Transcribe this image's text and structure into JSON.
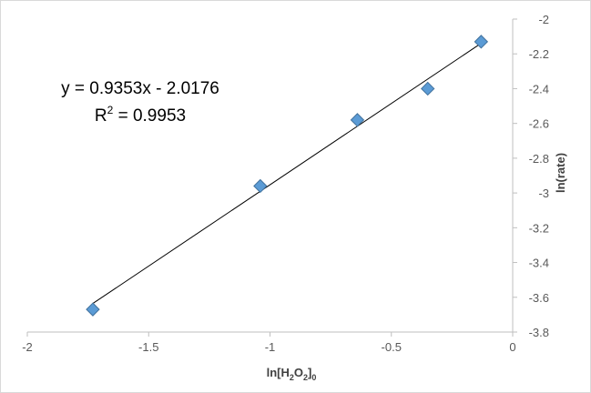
{
  "chart_data": {
    "type": "scatter",
    "title": "",
    "xlabel_parts": [
      "ln[H",
      "2",
      "O",
      "2",
      "]",
      "0"
    ],
    "ylabel": "ln(rate)",
    "xlim": [
      -2,
      0
    ],
    "ylim": [
      -3.8,
      -2
    ],
    "x_ticks": [
      -2,
      -1.5,
      -1,
      -0.5,
      0
    ],
    "y_ticks": [
      -3.8,
      -3.6,
      -3.4,
      -3.2,
      -3,
      -2.8,
      -2.6,
      -2.4,
      -2.2,
      -2
    ],
    "x_tick_labels": [
      "-2",
      "-1.5",
      "-1",
      "-0.5",
      "0"
    ],
    "y_tick_labels": [
      "-3.8",
      "-3.6",
      "-3.4",
      "-3.2",
      "-3",
      "-2.8",
      "-2.6",
      "-2.4",
      "-2.2",
      "-2"
    ],
    "grid": false,
    "y_axis_position": "right",
    "points": [
      {
        "x": -1.73,
        "y": -3.67
      },
      {
        "x": -1.04,
        "y": -2.96
      },
      {
        "x": -0.64,
        "y": -2.58
      },
      {
        "x": -0.35,
        "y": -2.4
      },
      {
        "x": -0.13,
        "y": -2.13
      }
    ],
    "trendline": {
      "slope": 0.9353,
      "intercept": -2.0176,
      "x_range": [
        -1.73,
        -0.13
      ],
      "equation_label": "y = 0.9353x - 2.0176",
      "r2_label_prefix": "R",
      "r2_label_sup": "2",
      "r2_label_value": " = 0.9953"
    },
    "colors": {
      "marker_fill": "#5b9bd5",
      "marker_stroke": "#41719c",
      "trendline": "#000000",
      "axis": "#bfbfbf"
    }
  }
}
